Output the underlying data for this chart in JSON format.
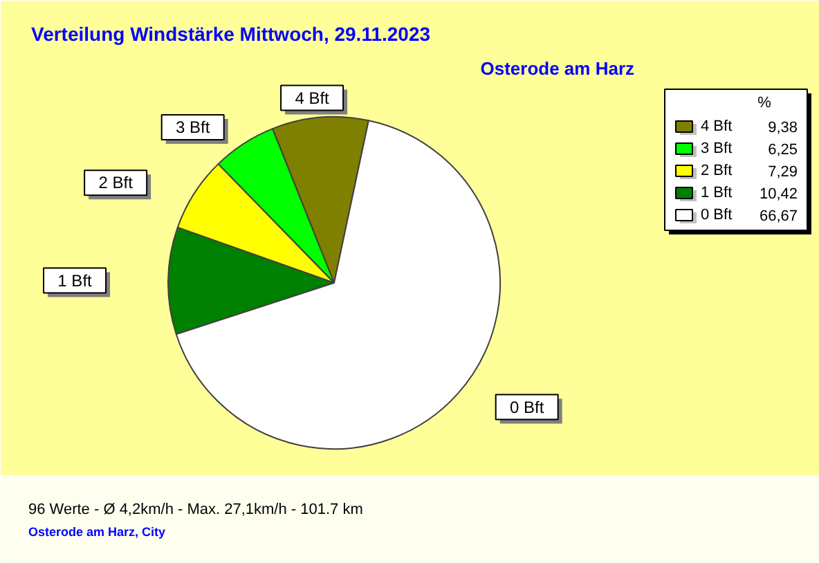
{
  "chart_data": {
    "type": "pie",
    "title": "Verteilung Windstärke  Mittwoch, 29.11.2023",
    "subtitle": "Osterode am Harz",
    "legend_title": "%",
    "legend": "right",
    "categories": [
      "4 Bft",
      "3 Bft",
      "2 Bft",
      "1 Bft",
      "0 Bft"
    ],
    "values": [
      9.38,
      6.25,
      7.29,
      10.42,
      66.67
    ],
    "value_labels": [
      "9,38",
      "6,25",
      "7,29",
      "10,42",
      "66,67"
    ],
    "colors": [
      "#808000",
      "#00ff00",
      "#ffff00",
      "#008000",
      "#ffffff"
    ],
    "annotations": [
      "96 Werte   -   Ø 4,2km/h  -  Max. 27,1km/h   -   101.7 km",
      "Osterode am Harz, City"
    ]
  }
}
